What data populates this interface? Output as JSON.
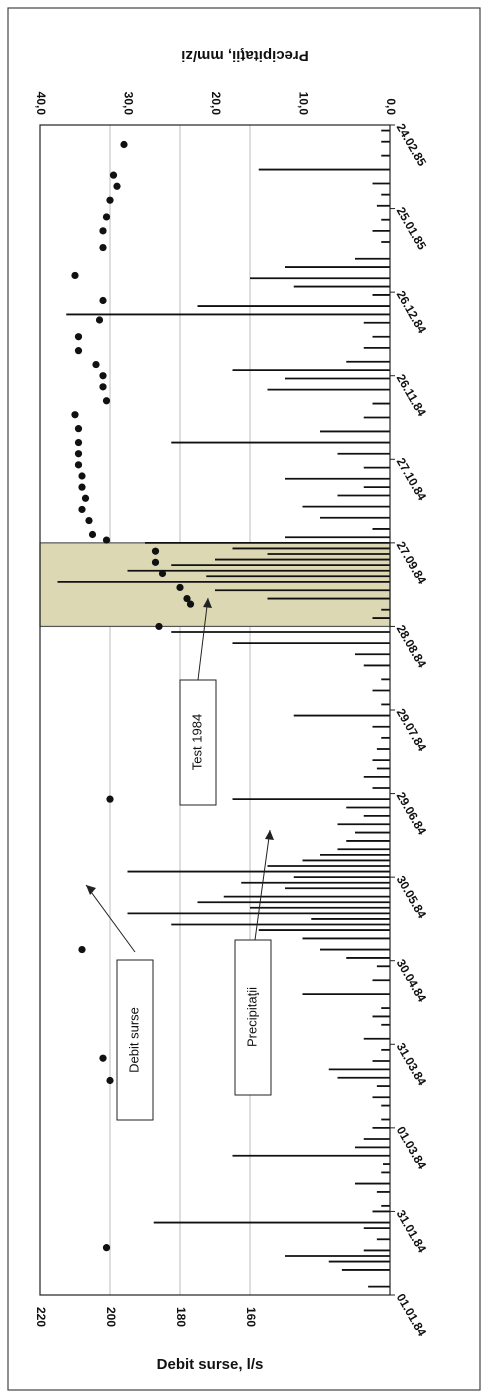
{
  "chart_data": {
    "type": "bar+scatter",
    "orientation": "rotated-90",
    "y_left_label": "Debit surse, l/s",
    "y_right_label": "Precipitaţii, mm/zi",
    "y_left_ticks": [
      "220",
      "200",
      "180",
      "160"
    ],
    "y_left_range": [
      120,
      220
    ],
    "y_right_ticks": [
      "0,0",
      "10,0",
      "20,0",
      "30,0",
      "40,0"
    ],
    "y_right_range": [
      0,
      40
    ],
    "x_ticks": [
      "01.01.84",
      "31.01.84",
      "01.03.84",
      "31.03.84",
      "30.04.84",
      "30.05.84",
      "29.06.84",
      "29.07.84",
      "28.08.84",
      "27.09.84",
      "27.10.84",
      "26.11.84",
      "26.12.84",
      "25.01.85",
      "24.02.85"
    ],
    "x_range_days": [
      0,
      420
    ],
    "grid": "horizontal",
    "highlight_span": {
      "start": "28.08.84",
      "end": "27.09.84",
      "color": "#ddd8b4",
      "label": "Test 1984"
    },
    "annotations": [
      {
        "text": "Debit surse",
        "target": "spring discharge point, 30.04.84"
      },
      {
        "text": "Precipitaţii",
        "target": "precipitation peak, 30.05.84"
      },
      {
        "text": "Test 1984",
        "target": "highlighted period"
      }
    ],
    "series": [
      {
        "name": "Debit surse",
        "kind": "scatter",
        "axis": "left",
        "units": "l/s",
        "points": [
          [
            17,
            201
          ],
          [
            77,
            200
          ],
          [
            85,
            202
          ],
          [
            124,
            208
          ],
          [
            178,
            200
          ],
          [
            240,
            186
          ],
          [
            248,
            177
          ],
          [
            250,
            178
          ],
          [
            254,
            180
          ],
          [
            259,
            185
          ],
          [
            263,
            187
          ],
          [
            267,
            187
          ],
          [
            271,
            201
          ],
          [
            273,
            205
          ],
          [
            278,
            206
          ],
          [
            282,
            208
          ],
          [
            286,
            207
          ],
          [
            290,
            208
          ],
          [
            294,
            208
          ],
          [
            298,
            209
          ],
          [
            302,
            209
          ],
          [
            306,
            209
          ],
          [
            311,
            209
          ],
          [
            316,
            210
          ],
          [
            321,
            201
          ],
          [
            326,
            202
          ],
          [
            330,
            202
          ],
          [
            334,
            204
          ],
          [
            339,
            209
          ],
          [
            344,
            209
          ],
          [
            350,
            203
          ],
          [
            357,
            202
          ],
          [
            366,
            210
          ],
          [
            376,
            202
          ],
          [
            382,
            202
          ],
          [
            387,
            201
          ],
          [
            393,
            200
          ],
          [
            398,
            198
          ],
          [
            402,
            199
          ],
          [
            413,
            196
          ]
        ]
      },
      {
        "name": "Precipitaţii",
        "kind": "bar",
        "axis": "right",
        "units": "mm/zi",
        "points": [
          [
            3,
            2.5
          ],
          [
            9,
            5.5
          ],
          [
            12,
            7
          ],
          [
            14,
            12
          ],
          [
            16,
            3
          ],
          [
            20,
            1.5
          ],
          [
            24,
            3
          ],
          [
            26,
            27
          ],
          [
            30,
            2
          ],
          [
            32,
            1
          ],
          [
            37,
            1.5
          ],
          [
            40,
            4
          ],
          [
            44,
            1
          ],
          [
            47,
            0.8
          ],
          [
            50,
            18
          ],
          [
            53,
            4
          ],
          [
            56,
            3
          ],
          [
            60,
            2
          ],
          [
            63,
            1
          ],
          [
            68,
            1
          ],
          [
            71,
            2
          ],
          [
            75,
            1.5
          ],
          [
            78,
            6
          ],
          [
            81,
            7
          ],
          [
            84,
            2
          ],
          [
            88,
            1
          ],
          [
            92,
            3
          ],
          [
            97,
            1
          ],
          [
            100,
            2
          ],
          [
            103,
            1
          ],
          [
            108,
            10
          ],
          [
            113,
            2
          ],
          [
            118,
            1.5
          ],
          [
            121,
            5
          ],
          [
            124,
            8
          ],
          [
            128,
            10
          ],
          [
            131,
            15
          ],
          [
            133,
            25
          ],
          [
            135,
            9
          ],
          [
            137,
            30
          ],
          [
            139,
            16
          ],
          [
            141,
            22
          ],
          [
            143,
            19
          ],
          [
            146,
            12
          ],
          [
            148,
            17
          ],
          [
            150,
            11
          ],
          [
            152,
            30
          ],
          [
            154,
            14
          ],
          [
            156,
            10
          ],
          [
            158,
            8
          ],
          [
            160,
            6
          ],
          [
            163,
            5
          ],
          [
            166,
            4
          ],
          [
            169,
            6
          ],
          [
            172,
            3
          ],
          [
            175,
            5
          ],
          [
            178,
            18
          ],
          [
            182,
            2
          ],
          [
            186,
            3
          ],
          [
            189,
            1.5
          ],
          [
            192,
            2
          ],
          [
            196,
            1.5
          ],
          [
            200,
            1
          ],
          [
            204,
            2
          ],
          [
            208,
            11
          ],
          [
            212,
            1
          ],
          [
            217,
            2
          ],
          [
            221,
            1
          ],
          [
            226,
            3
          ],
          [
            230,
            4
          ],
          [
            234,
            18
          ],
          [
            238,
            25
          ],
          [
            243,
            2
          ],
          [
            246,
            1
          ],
          [
            250,
            14
          ],
          [
            253,
            20
          ],
          [
            256,
            38
          ],
          [
            258,
            21
          ],
          [
            260,
            30
          ],
          [
            262,
            25
          ],
          [
            264,
            20
          ],
          [
            266,
            14
          ],
          [
            268,
            18
          ],
          [
            270,
            28
          ],
          [
            272,
            12
          ],
          [
            275,
            2
          ],
          [
            279,
            8
          ],
          [
            283,
            10
          ],
          [
            287,
            6
          ],
          [
            290,
            3
          ],
          [
            293,
            12
          ],
          [
            297,
            3
          ],
          [
            302,
            6
          ],
          [
            306,
            25
          ],
          [
            310,
            8
          ],
          [
            315,
            3
          ],
          [
            320,
            2
          ],
          [
            325,
            14
          ],
          [
            329,
            12
          ],
          [
            332,
            18
          ],
          [
            335,
            5
          ],
          [
            340,
            3
          ],
          [
            344,
            2
          ],
          [
            349,
            3
          ],
          [
            352,
            37
          ],
          [
            355,
            22
          ],
          [
            359,
            2
          ],
          [
            362,
            11
          ],
          [
            365,
            16
          ],
          [
            369,
            12
          ],
          [
            372,
            4
          ],
          [
            378,
            1
          ],
          [
            382,
            2
          ],
          [
            386,
            1
          ],
          [
            391,
            1.5
          ],
          [
            395,
            1
          ],
          [
            399,
            2
          ],
          [
            404,
            15
          ],
          [
            409,
            1
          ],
          [
            414,
            1
          ],
          [
            418,
            1
          ]
        ]
      }
    ]
  }
}
